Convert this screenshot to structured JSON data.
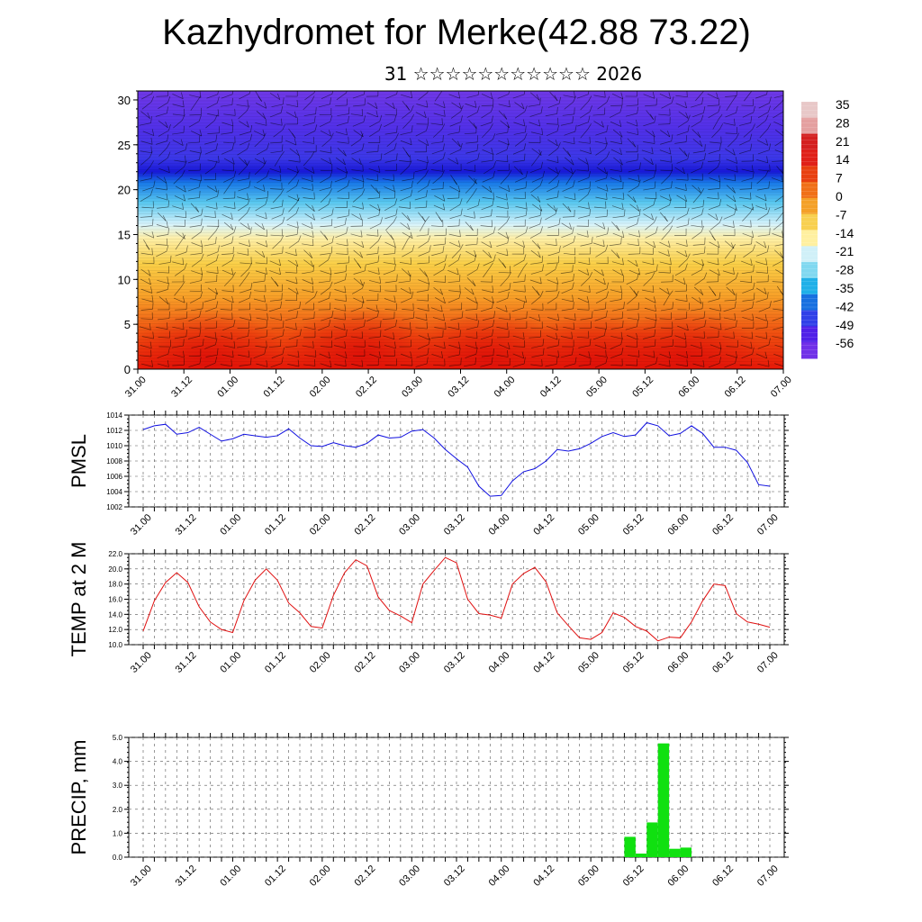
{
  "title": "Kazhydromet for Merke(42.88 73.22)",
  "date_text": "31 ☆☆☆☆☆☆☆☆☆☆☆ 2026",
  "time_labels": [
    "31.00",
    "31.12",
    "01.00",
    "01.12",
    "02.00",
    "02.12",
    "03.00",
    "03.12",
    "04.00",
    "04.12",
    "05.00",
    "05.12",
    "06.00",
    "06.12",
    "07.00"
  ],
  "chart_data": [
    {
      "type": "heatmap",
      "name": "vertical-section",
      "x": [
        "31.00",
        "31.12",
        "01.00",
        "01.12",
        "02.00",
        "02.12",
        "03.00",
        "03.12",
        "04.00",
        "04.12",
        "05.00",
        "05.12",
        "06.00",
        "06.12",
        "07.00"
      ],
      "y_ticks": [
        "0",
        "5",
        "10",
        "15",
        "20",
        "25",
        "30"
      ],
      "ylim": [
        0,
        31
      ],
      "colorbar_labels": [
        "35",
        "28",
        "21",
        "14",
        "7",
        "0",
        "-7",
        "-14",
        "-21",
        "-28",
        "-35",
        "-42",
        "-49",
        "-56"
      ],
      "colorbar_colors": [
        "#e8c8c8",
        "#e4a0a0",
        "#d42020",
        "#e02018",
        "#e84010",
        "#f07018",
        "#f4a028",
        "#f8d050",
        "#fff0a0",
        "#d0f0f8",
        "#80d8f0",
        "#20b0e8",
        "#1870e0",
        "#3040e8",
        "#5020e8",
        "#7030e8"
      ]
    },
    {
      "type": "line",
      "name": "pmsl",
      "ylabel": "PMSL",
      "ylim": [
        1002,
        1014
      ],
      "y_ticks": [
        "1002",
        "1004",
        "1006",
        "1008",
        "1010",
        "1012",
        "1014"
      ],
      "color": "#1010e0",
      "values": [
        1012.1,
        1012.6,
        1012.8,
        1011.5,
        1011.7,
        1012.4,
        1011.5,
        1010.6,
        1010.9,
        1011.5,
        1011.3,
        1011.1,
        1011.3,
        1012.2,
        1011.0,
        1010.0,
        1009.9,
        1010.4,
        1010.0,
        1009.8,
        1010.3,
        1011.4,
        1011.0,
        1011.1,
        1011.9,
        1012.1,
        1011.0,
        1009.5,
        1008.3,
        1007.2,
        1004.7,
        1003.4,
        1003.5,
        1005.4,
        1006.6,
        1007.0,
        1008.0,
        1009.5,
        1009.3,
        1009.6,
        1010.3,
        1011.2,
        1011.7,
        1011.2,
        1011.4,
        1013.0,
        1012.6,
        1011.3,
        1011.6,
        1012.6,
        1011.6,
        1009.8,
        1009.8,
        1009.4,
        1007.8,
        1004.9,
        1004.7
      ]
    },
    {
      "type": "line",
      "name": "temp",
      "ylabel": "TEMP at 2 M",
      "ylim": [
        10,
        22
      ],
      "y_ticks": [
        "10.0",
        "12.0",
        "14.0",
        "16.0",
        "18.0",
        "20.0",
        "22.0"
      ],
      "color": "#e01010",
      "values": [
        11.8,
        15.8,
        18.2,
        19.5,
        18.2,
        15.0,
        13.0,
        12.0,
        11.6,
        15.8,
        18.5,
        20.0,
        18.5,
        15.5,
        14.2,
        12.4,
        12.2,
        16.5,
        19.5,
        21.2,
        20.4,
        16.3,
        14.5,
        13.8,
        12.9,
        18.0,
        19.8,
        21.5,
        20.8,
        16.0,
        14.1,
        13.9,
        13.5,
        18.0,
        19.4,
        20.2,
        18.3,
        14.2,
        12.5,
        10.9,
        10.7,
        11.6,
        14.2,
        13.6,
        12.4,
        11.8,
        10.5,
        11.0,
        10.9,
        13.0,
        15.8,
        18.0,
        17.8,
        14.1,
        13.0,
        12.7,
        12.3
      ]
    },
    {
      "type": "bar",
      "name": "precip",
      "ylabel": "PRECIP, mm",
      "ylim": [
        0,
        5
      ],
      "y_ticks": [
        "0.0",
        "1.0",
        "2.0",
        "3.0",
        "4.0",
        "5.0"
      ],
      "color": "#10e010",
      "step_hours": 3,
      "values": [
        0,
        0,
        0,
        0,
        0,
        0,
        0,
        0,
        0,
        0,
        0,
        0,
        0,
        0,
        0,
        0,
        0,
        0,
        0,
        0,
        0,
        0,
        0,
        0,
        0,
        0,
        0,
        0,
        0,
        0,
        0,
        0,
        0,
        0,
        0,
        0,
        0,
        0,
        0,
        0,
        0,
        0,
        0,
        0.85,
        0.15,
        1.45,
        4.75,
        0.35,
        0.4,
        0,
        0,
        0,
        0,
        0,
        0,
        0
      ]
    }
  ]
}
